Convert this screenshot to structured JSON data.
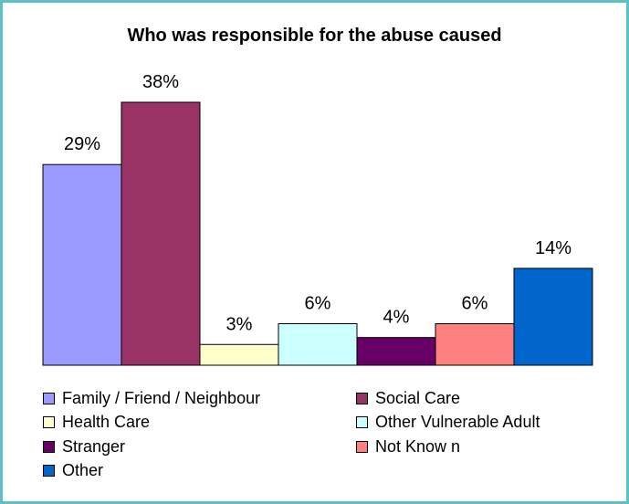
{
  "chart_data": {
    "type": "bar",
    "title": "Who was responsible for the abuse caused",
    "categories": [
      "Family / Friend / Neighbour",
      "Social Care",
      "Health Care",
      "Other Vulnerable Adult",
      "Stranger",
      "Not Know n",
      "Other"
    ],
    "values": [
      29,
      38,
      3,
      6,
      4,
      6,
      14
    ],
    "labels": [
      "29%",
      "38%",
      "3%",
      "6%",
      "4%",
      "6%",
      "14%"
    ],
    "colors": [
      "#9999ff",
      "#993366",
      "#ffffcc",
      "#ccffff",
      "#660066",
      "#ff8080",
      "#0066cc"
    ],
    "ylim": [
      0,
      38
    ],
    "grid": false,
    "legend_position": "bottom"
  }
}
